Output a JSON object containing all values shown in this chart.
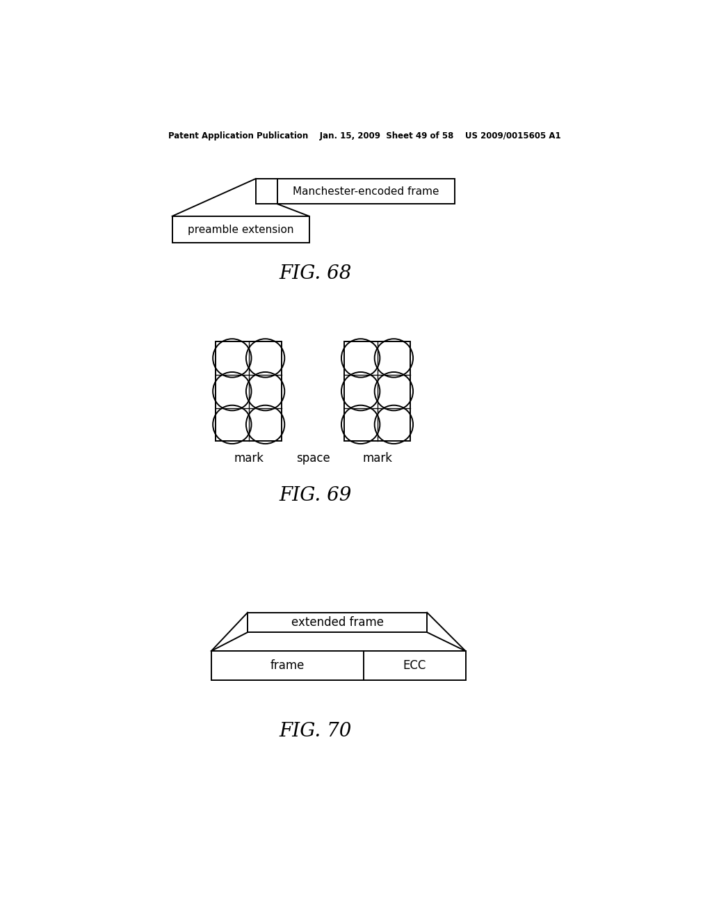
{
  "bg_color": "#ffffff",
  "header_text": "Patent Application Publication    Jan. 15, 2009  Sheet 49 of 58    US 2009/0015605 A1",
  "fig68_caption": "FIG. 68",
  "fig69_caption": "FIG. 69",
  "fig70_caption": "FIG. 70",
  "fig68_label_manchester": "Manchester-encoded frame",
  "fig68_label_preamble": "preamble extension",
  "fig69_label_mark1": "mark",
  "fig69_label_space": "space",
  "fig69_label_mark2": "mark",
  "fig70_label_extended": "extended frame",
  "fig70_label_frame": "frame",
  "fig70_label_ecc": "ECC",
  "lw": 1.4
}
